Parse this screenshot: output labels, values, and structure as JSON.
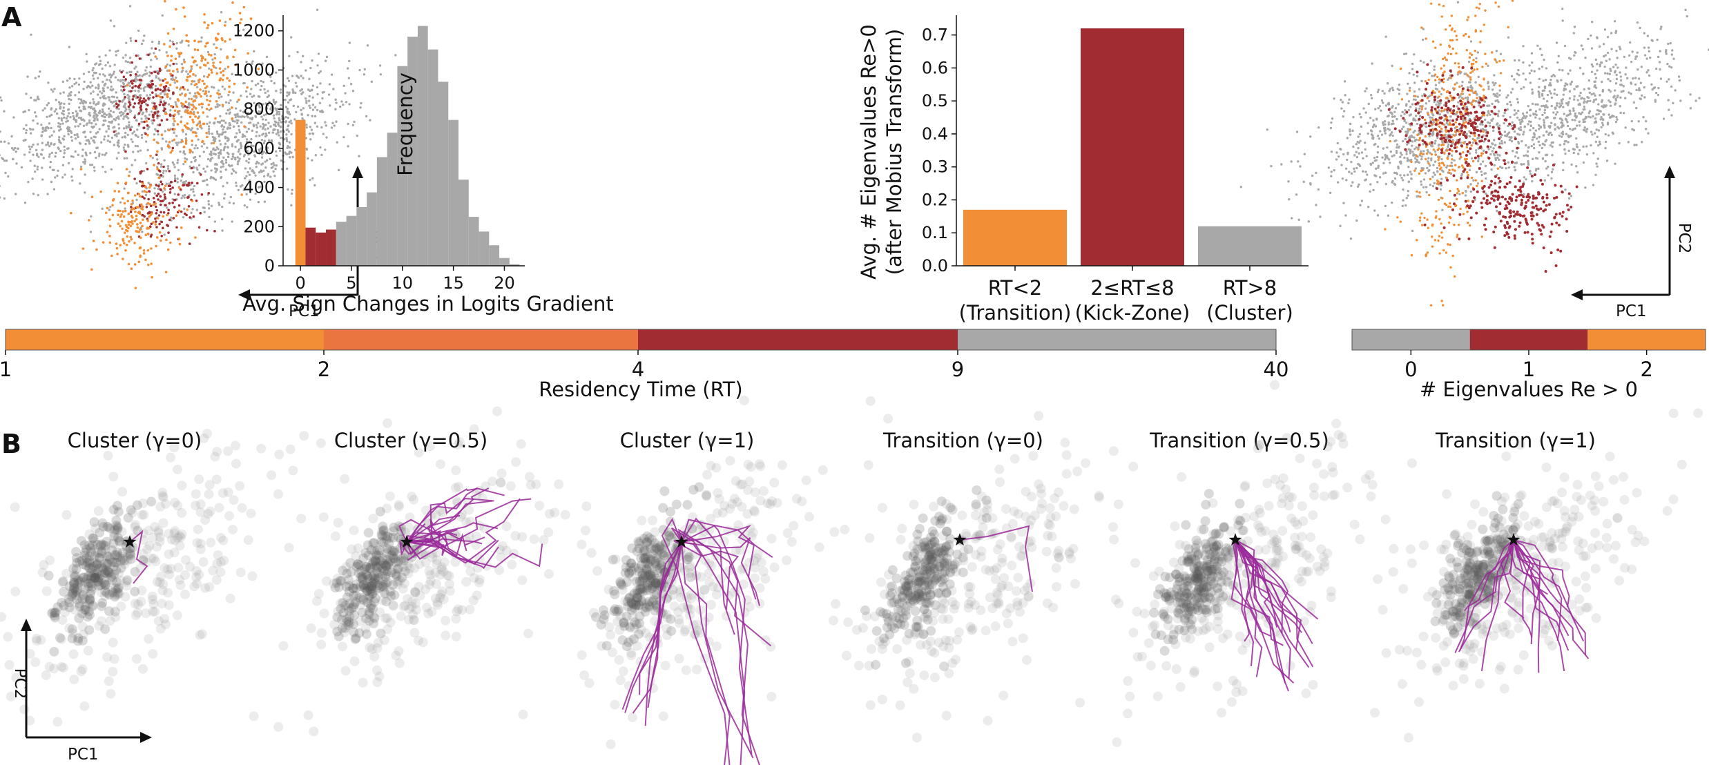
{
  "panel_labels": {
    "a": "A",
    "b": "B"
  },
  "colors": {
    "transition": "#f28e35",
    "kick": "#a12c31",
    "cluster": "#a8a8a8",
    "rt_mid": "#ea7540",
    "traj": "#9a2a9a",
    "scatter_dark": "#555555"
  },
  "axes_labels": {
    "pc1": "PC1",
    "pc2": "PC2"
  },
  "chart_data": [
    {
      "type": "bar",
      "kind": "histogram",
      "xlabel": "Avg. Sign Changes in Logits Gradient",
      "ylabel": "Frequency",
      "xticks": [
        0,
        5,
        10,
        15,
        20
      ],
      "yticks": [
        0,
        200,
        400,
        600,
        800,
        1000,
        1200
      ],
      "xlim": [
        -1.2,
        22.5
      ],
      "ylim": [
        0,
        1280
      ],
      "bin_width": 1,
      "bins": [
        {
          "x": 0,
          "value": 745,
          "group": "transition"
        },
        {
          "x": 1,
          "value": 195,
          "group": "kick"
        },
        {
          "x": 2,
          "value": 170,
          "group": "kick"
        },
        {
          "x": 3,
          "value": 185,
          "group": "kick"
        },
        {
          "x": 4,
          "value": 225,
          "group": "cluster"
        },
        {
          "x": 5,
          "value": 255,
          "group": "cluster"
        },
        {
          "x": 6,
          "value": 300,
          "group": "cluster"
        },
        {
          "x": 7,
          "value": 375,
          "group": "cluster"
        },
        {
          "x": 8,
          "value": 555,
          "group": "cluster"
        },
        {
          "x": 9,
          "value": 680,
          "group": "cluster"
        },
        {
          "x": 10,
          "value": 1020,
          "group": "cluster"
        },
        {
          "x": 11,
          "value": 1170,
          "group": "cluster"
        },
        {
          "x": 12,
          "value": 1225,
          "group": "cluster"
        },
        {
          "x": 13,
          "value": 1105,
          "group": "cluster"
        },
        {
          "x": 14,
          "value": 940,
          "group": "cluster"
        },
        {
          "x": 15,
          "value": 745,
          "group": "cluster"
        },
        {
          "x": 16,
          "value": 440,
          "group": "cluster"
        },
        {
          "x": 17,
          "value": 250,
          "group": "cluster"
        },
        {
          "x": 18,
          "value": 175,
          "group": "cluster"
        },
        {
          "x": 19,
          "value": 105,
          "group": "cluster"
        },
        {
          "x": 20,
          "value": 40,
          "group": "cluster"
        },
        {
          "x": 21,
          "value": 8,
          "group": "cluster"
        }
      ]
    },
    {
      "type": "bar",
      "ylabel_lines": [
        "Avg. # Eigenvalues Re>0",
        "(after Mobius Transform)"
      ],
      "categories": [
        {
          "lines": [
            "RT<2",
            "(Transition)"
          ],
          "value": 0.17,
          "group": "transition"
        },
        {
          "lines": [
            "2≤RT≤8",
            "(Kick-Zone)"
          ],
          "value": 0.72,
          "group": "kick"
        },
        {
          "lines": [
            "RT>8",
            "(Cluster)"
          ],
          "value": 0.12,
          "group": "cluster"
        }
      ],
      "yticks": [
        "0.0",
        "0.1",
        "0.2",
        "0.3",
        "0.4",
        "0.5",
        "0.6",
        "0.7"
      ],
      "ylim": [
        0,
        0.76
      ]
    },
    {
      "type": "colorbar",
      "label": "Residency Time (RT)",
      "ticks": [
        "1",
        "2",
        "4",
        "9",
        "40"
      ],
      "segments": [
        "transition",
        "rt_mid",
        "kick",
        "cluster"
      ]
    },
    {
      "type": "colorbar",
      "label": "# Eigenvalues Re > 0",
      "ticks": [
        "0",
        "1",
        "2"
      ],
      "segments": [
        "cluster",
        "kick",
        "transition"
      ]
    },
    {
      "type": "scatter",
      "panel": "A-left",
      "description_groups": [
        "cluster",
        "kick",
        "transition"
      ]
    },
    {
      "type": "scatter",
      "panel": "A-right",
      "description_groups": [
        "cluster",
        "kick",
        "transition"
      ]
    }
  ],
  "trajectory_panels": [
    {
      "title": "Cluster (γ=0)"
    },
    {
      "title": "Cluster (γ=0.5)"
    },
    {
      "title": "Cluster (γ=1)"
    },
    {
      "title": "Transition (γ=0)"
    },
    {
      "title": "Transition (γ=0.5)"
    },
    {
      "title": "Transition (γ=1)"
    }
  ]
}
